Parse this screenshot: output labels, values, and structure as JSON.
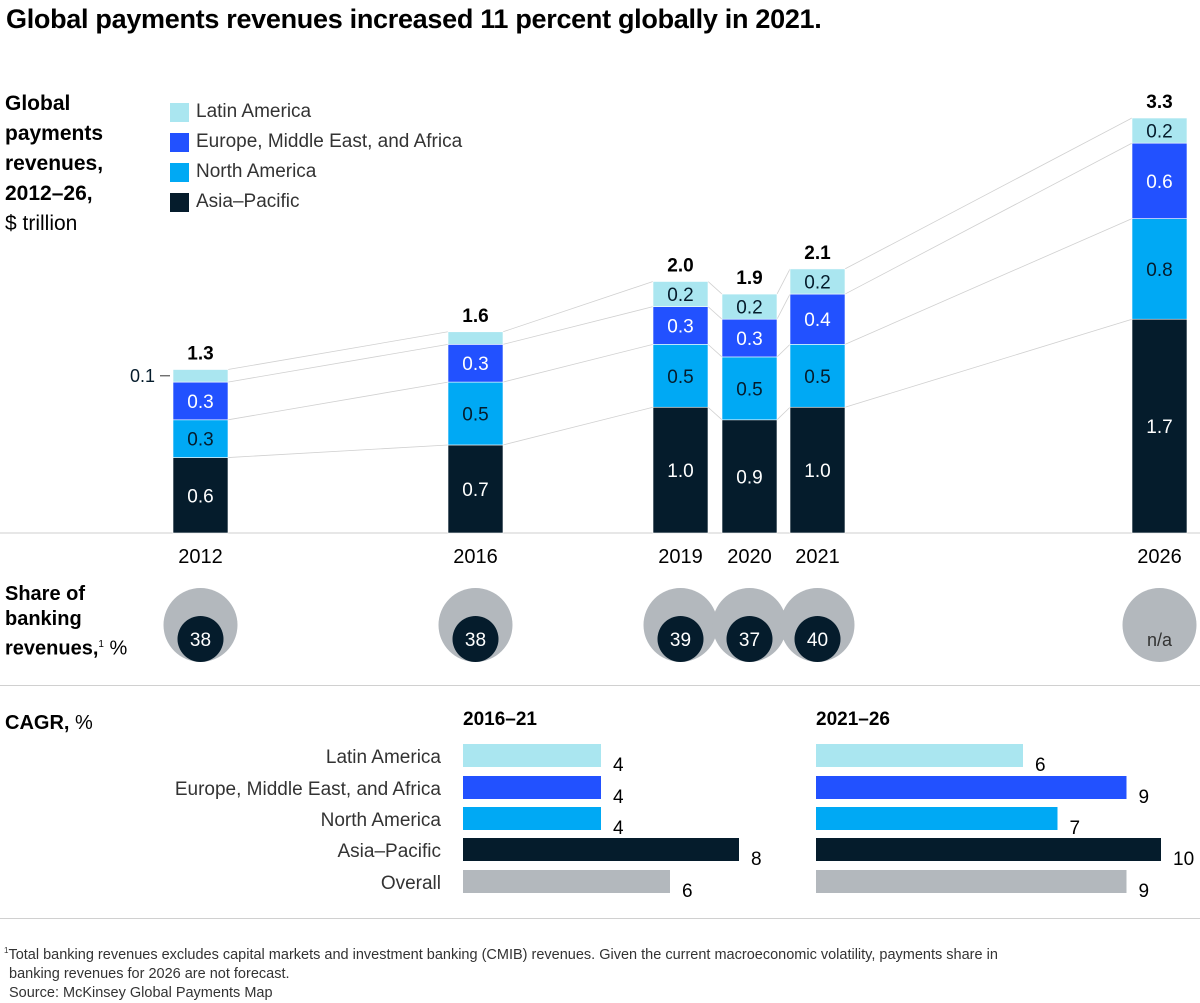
{
  "title": "Global payments revenues increased 11 percent globally in 2021.",
  "y_label": {
    "bold_lines": [
      "Global",
      "payments",
      "revenues,",
      "2012–26,"
    ],
    "unit": "$ trillion"
  },
  "colors": {
    "latin_america": "#aae6f0",
    "emea": "#2251ff",
    "north_america": "#00a9f4",
    "asia_pacific": "#051c2c",
    "overall": "#b3b8bd",
    "circle_bg": "#b3b8bd",
    "connector": "#d0d0d0"
  },
  "chart_data": [
    {
      "type": "bar",
      "stacked": true,
      "title": "Global payments revenues, 2012–26, $ trillion",
      "categories": [
        "2012",
        "2016",
        "2019",
        "2020",
        "2021",
        "2026"
      ],
      "series": [
        {
          "name": "Asia–Pacific",
          "key": "asia_pacific",
          "values": [
            0.6,
            0.7,
            1.0,
            0.9,
            1.0,
            1.7
          ],
          "labels": [
            "0.6",
            "0.7",
            "1.0",
            "0.9",
            "1.0",
            "1.7"
          ]
        },
        {
          "name": "North America",
          "key": "north_america",
          "values": [
            0.3,
            0.5,
            0.5,
            0.5,
            0.5,
            0.8
          ],
          "labels": [
            "0.3",
            "0.5",
            "0.5",
            "0.5",
            "0.5",
            "0.8"
          ]
        },
        {
          "name": "Europe, Middle East, and Africa",
          "key": "emea",
          "values": [
            0.3,
            0.3,
            0.3,
            0.3,
            0.4,
            0.6
          ],
          "labels": [
            "0.3",
            "0.3",
            "0.3",
            "0.3",
            "0.4",
            "0.6"
          ]
        },
        {
          "name": "Latin America",
          "key": "latin_america",
          "values": [
            0.1,
            0.1,
            0.2,
            0.2,
            0.2,
            0.2
          ],
          "labels": [
            "0.1",
            "",
            "0.2",
            "0.2",
            "0.2",
            "0.2"
          ]
        }
      ],
      "totals": [
        "1.3",
        "1.6",
        "2.0",
        "1.9",
        "2.1",
        "3.3"
      ],
      "legend": [
        "Latin America",
        "Europe, Middle East, and Africa",
        "North America",
        "Asia–Pacific"
      ],
      "legend_position": "top-left",
      "ylim": [
        0,
        3.3
      ],
      "grid": false
    },
    {
      "type": "scatter",
      "title": "Share of banking revenues, %",
      "categories": [
        "2012",
        "2016",
        "2019",
        "2020",
        "2021",
        "2026"
      ],
      "values": [
        38,
        38,
        39,
        37,
        40,
        null
      ],
      "labels": [
        "38",
        "38",
        "39",
        "37",
        "40",
        "n/a"
      ]
    },
    {
      "type": "bar",
      "orientation": "horizontal",
      "title": "CAGR, %",
      "categories": [
        "Latin America",
        "Europe, Middle East, and Africa",
        "North America",
        "Asia–Pacific",
        "Overall"
      ],
      "series": [
        {
          "name": "2016–21",
          "values": [
            4,
            4,
            4,
            8,
            6
          ]
        },
        {
          "name": "2021–26",
          "values": [
            6,
            9,
            7,
            10,
            9
          ]
        }
      ],
      "xlim": [
        0,
        10
      ]
    }
  ],
  "share_label": {
    "lines": [
      "Share of",
      "banking",
      "revenues,"
    ],
    "sup": "1",
    "unit": "%"
  },
  "cagr_label": {
    "bold": "CAGR,",
    "unit": "%"
  },
  "footnote": {
    "sup": "1",
    "line1": "Total banking revenues excludes capital markets and investment banking (CMIB) revenues. Given the current macroeconomic volatility, payments share in",
    "line2": "banking revenues for 2026 are not forecast.",
    "source": "Source: McKinsey Global Payments Map"
  }
}
